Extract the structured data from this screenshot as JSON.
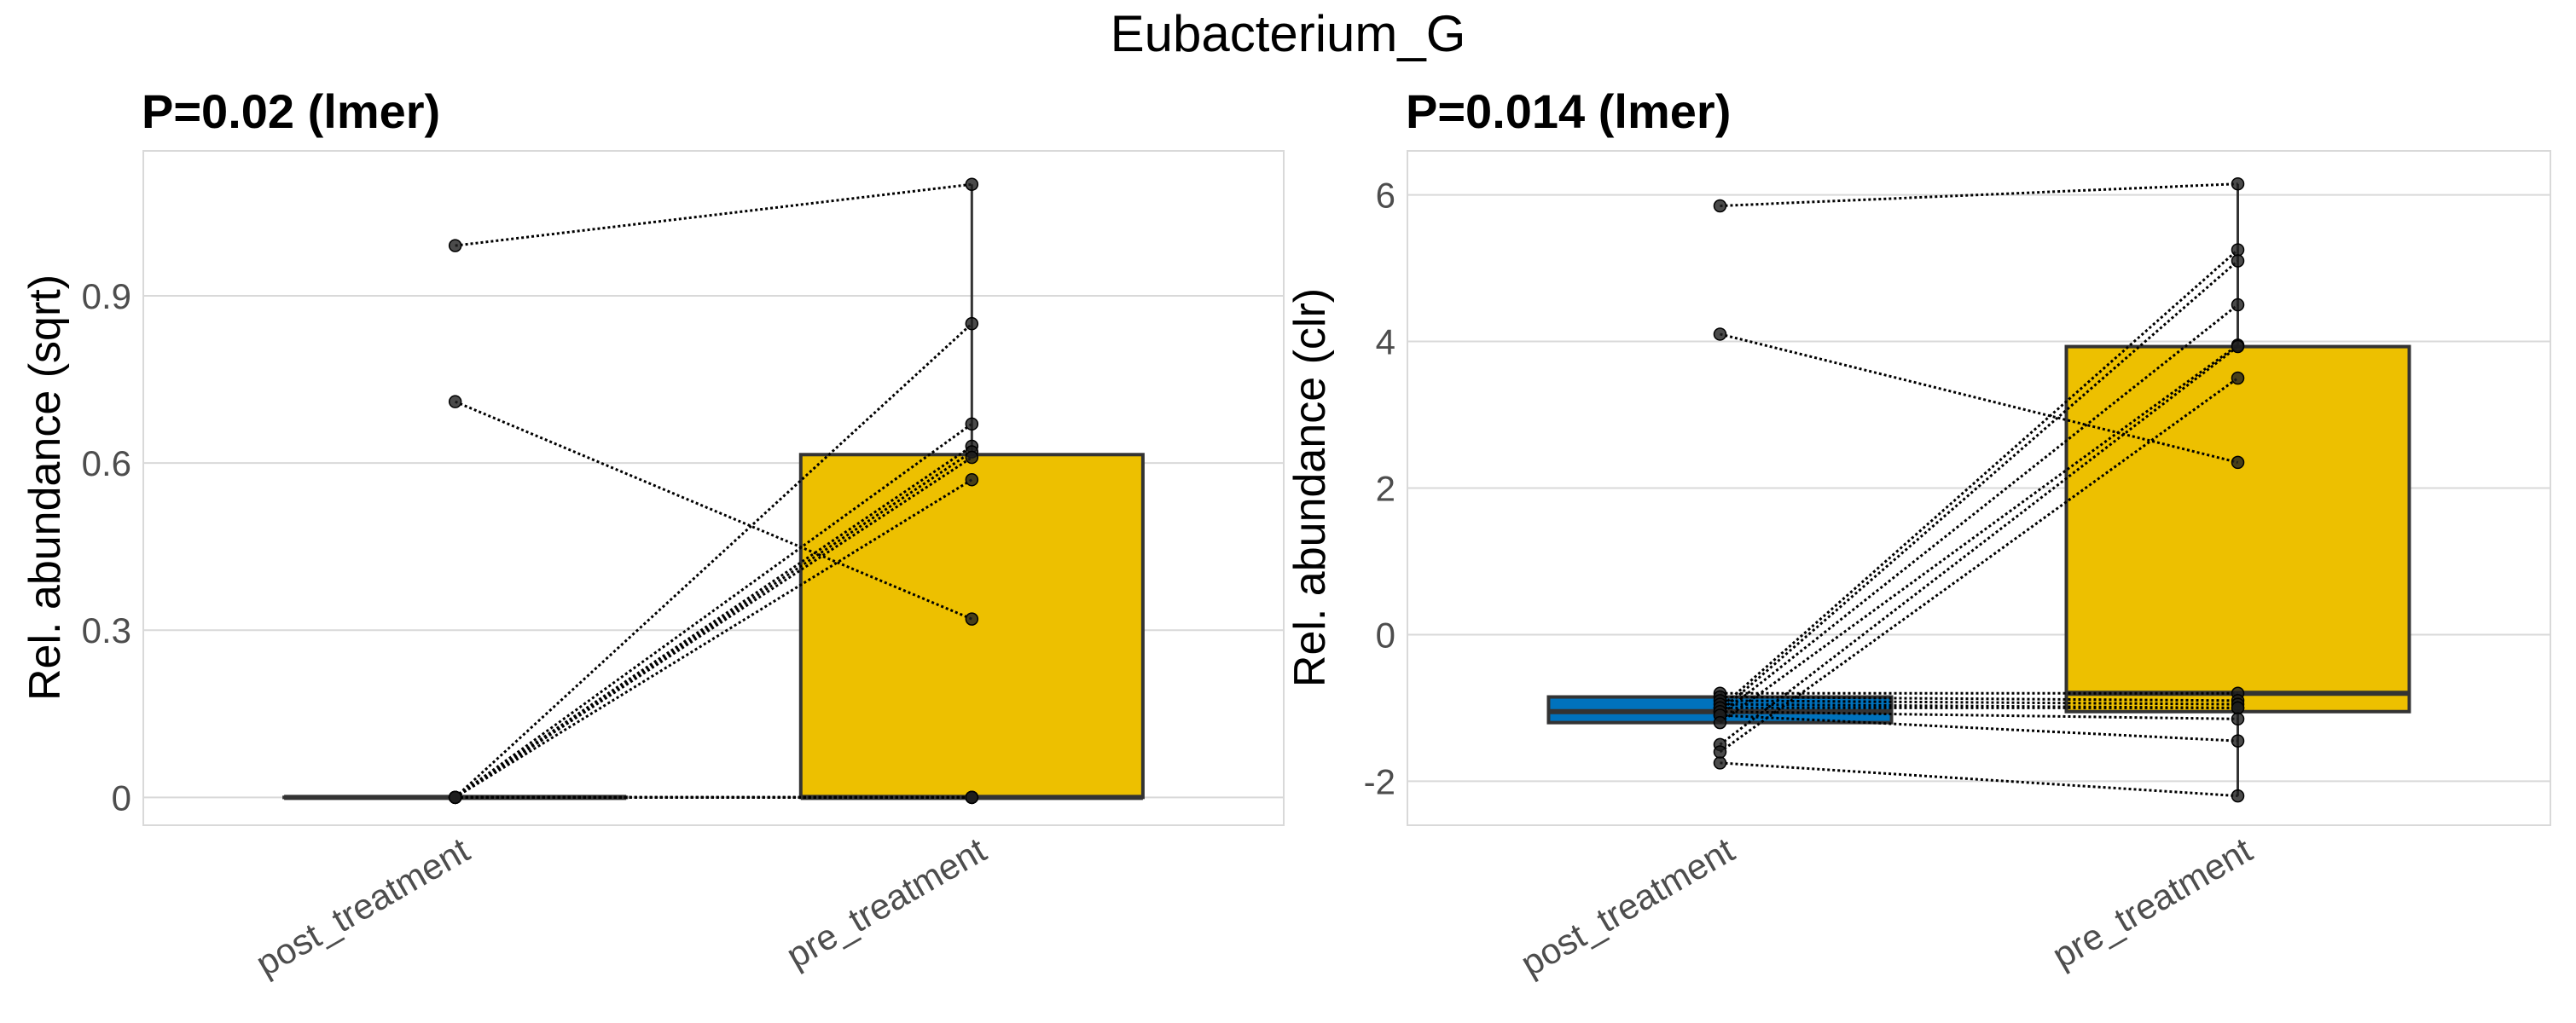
{
  "suptitle": "Eubacterium_G",
  "colors": {
    "post": "#0072BD",
    "pre": "#EDC000",
    "edge": "#333333",
    "grid": "#d9d9d9"
  },
  "chart_data": [
    {
      "type": "box",
      "title": "P=0.02 (lmer)",
      "ylabel": "Rel. abundance (sqrt)",
      "xlabel": "",
      "categories": [
        "post_treatment",
        "pre_treatment"
      ],
      "ylim": [
        -0.05,
        1.16
      ],
      "yticks": [
        0,
        0.3,
        0.6,
        0.9
      ],
      "ytick_labels": [
        "0",
        "0.3",
        "0.6",
        "0.9"
      ],
      "grid": true,
      "boxes": [
        {
          "q1": 0,
          "median": 0,
          "q3": 0,
          "whisker_low": 0,
          "whisker_high": 0
        },
        {
          "q1": 0,
          "median": 0,
          "q3": 0.615,
          "whisker_low": 0,
          "whisker_high": 1.1
        }
      ],
      "pairs": [
        [
          0.99,
          1.1
        ],
        [
          0.71,
          0.32
        ],
        [
          0,
          0.85
        ],
        [
          0,
          0.67
        ],
        [
          0,
          0.63
        ],
        [
          0,
          0.62
        ],
        [
          0,
          0.61
        ],
        [
          0,
          0.57
        ],
        [
          0,
          0
        ],
        [
          0,
          0
        ],
        [
          0,
          0
        ],
        [
          0,
          0
        ],
        [
          0,
          0
        ],
        [
          0,
          0
        ],
        [
          0,
          0
        ],
        [
          0,
          0
        ]
      ]
    },
    {
      "type": "box",
      "title": "P=0.014 (lmer)",
      "ylabel": "Rel. abundance (clr)",
      "xlabel": "",
      "categories": [
        "post_treatment",
        "pre_treatment"
      ],
      "ylim": [
        -2.6,
        6.6
      ],
      "yticks": [
        -2,
        0,
        2,
        4,
        6
      ],
      "ytick_labels": [
        "-2",
        "0",
        "2",
        "4",
        "6"
      ],
      "grid": true,
      "boxes": [
        {
          "q1": -1.2,
          "median": -1.05,
          "q3": -0.85,
          "whisker_low": -1.2,
          "whisker_high": -0.85
        },
        {
          "q1": -1.05,
          "median": -0.8,
          "q3": 3.93,
          "whisker_low": -2.2,
          "whisker_high": 6.15
        }
      ],
      "pairs": [
        [
          5.85,
          6.15
        ],
        [
          4.1,
          2.35
        ],
        [
          -0.8,
          -0.8
        ],
        [
          -0.85,
          -0.9
        ],
        [
          -0.9,
          -0.95
        ],
        [
          -0.95,
          -1.0
        ],
        [
          -1.0,
          -1.0
        ],
        [
          -1.05,
          -1.15
        ],
        [
          -1.1,
          -1.45
        ],
        [
          -1.75,
          -2.2
        ],
        [
          -1.0,
          5.25
        ],
        [
          -1.05,
          5.1
        ],
        [
          -1.1,
          4.5
        ],
        [
          -1.2,
          3.95
        ],
        [
          -1.5,
          3.93
        ],
        [
          -1.6,
          3.5
        ]
      ]
    }
  ]
}
